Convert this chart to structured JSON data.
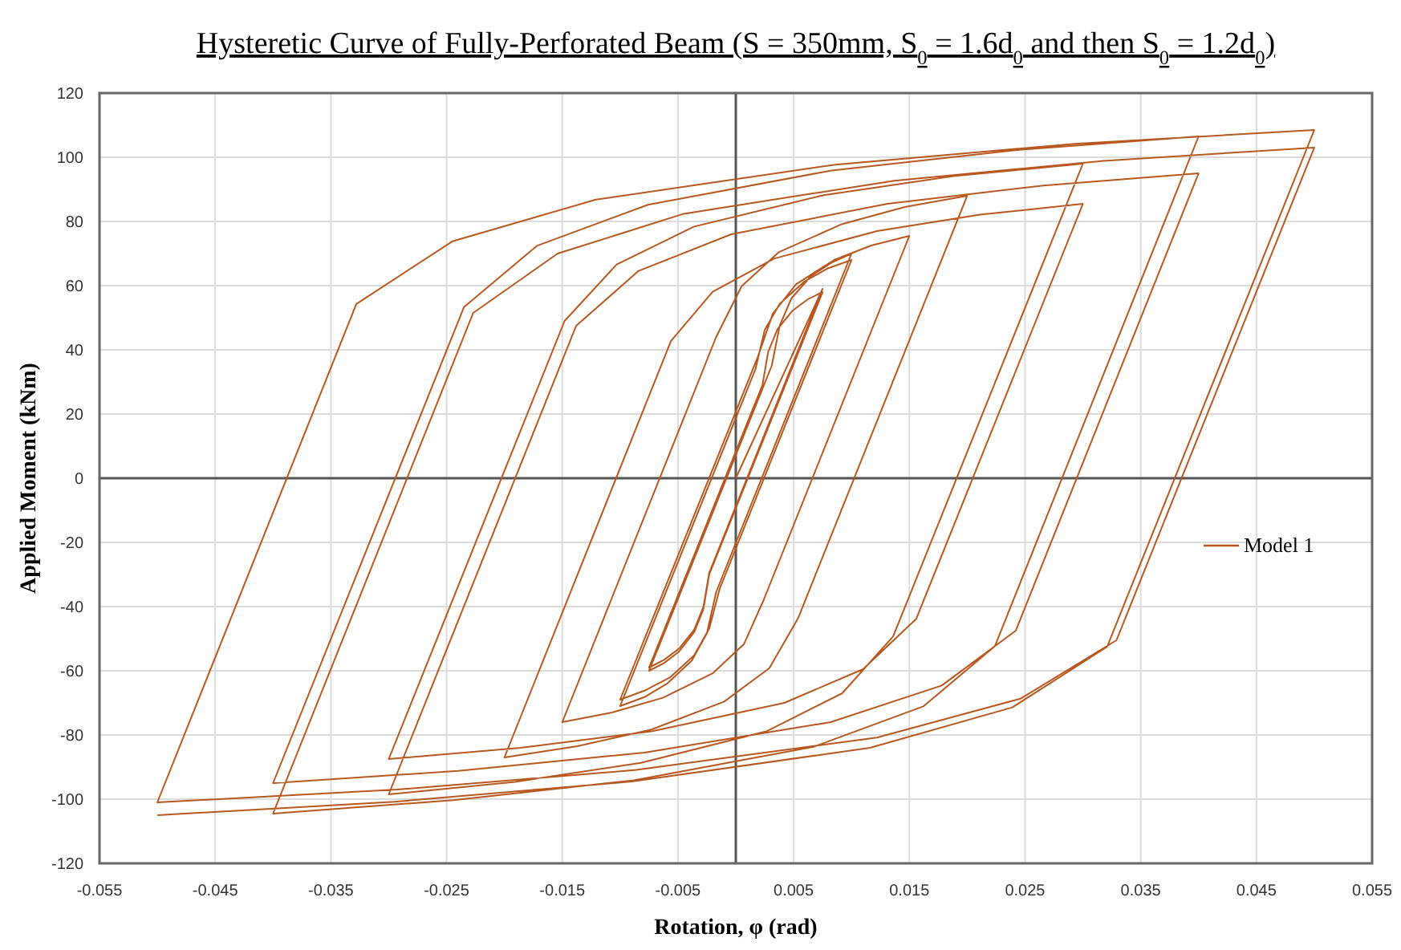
{
  "chart_data": {
    "type": "line",
    "title": "Hysteretic Curve of Fully-Perforated Beam (S = 350mm, S$_{0}$ = 1.6d$_{0}$ and then S$_{0}$ = 1.2d$_{0}$)",
    "xlabel": "Rotation, φ (rad)",
    "ylabel": "Applied Moment (kNm)",
    "xlim": [
      -0.055,
      0.055
    ],
    "xticks": [
      -0.055,
      -0.045,
      -0.035,
      -0.025,
      -0.015,
      -0.005,
      0.005,
      0.015,
      0.025,
      0.035,
      0.045,
      0.055
    ],
    "ylim": [
      -120,
      120
    ],
    "yticks": [
      -120,
      -100,
      -80,
      -60,
      -40,
      -20,
      0,
      20,
      40,
      60,
      80,
      100,
      120
    ],
    "grid": true,
    "legend": "right",
    "marker": "none",
    "line_style": "solid",
    "series": [
      {
        "name": "Model 1",
        "color": "#b8581f",
        "x": [
          0,
          0.0075,
          -0.0023,
          -0.0028,
          -0.0036,
          -0.0049,
          -0.0062,
          -0.0075,
          0.0023,
          0.0028,
          0.0036,
          0.0049,
          0.0062,
          0.0075,
          -0.0023,
          -0.0028,
          -0.0036,
          -0.0049,
          -0.0062,
          -0.0075,
          0.0031,
          0.0038,
          0.0048,
          0.0065,
          0.0083,
          0.01,
          -0.0017,
          -0.0025,
          -0.0038,
          -0.0059,
          -0.0079,
          -0.01,
          0.0017,
          0.0025,
          0.0038,
          0.0059,
          0.0079,
          0.01,
          -0.0014,
          -0.0023,
          -0.0036,
          -0.0057,
          -0.0079,
          -0.01,
          0.0019,
          0.0032,
          0.0052,
          0.0085,
          0.0117,
          0.015,
          0.0024,
          0.0007,
          -0.002,
          -0.0063,
          -0.0107,
          -0.015,
          -0.0017,
          0.0005,
          0.0037,
          0.0092,
          0.0146,
          0.02,
          0.0054,
          0.0029,
          -0.001,
          -0.0073,
          -0.0137,
          -0.02,
          -0.0056,
          -0.002,
          0.0033,
          0.0122,
          0.0211,
          0.03,
          0.0156,
          0.011,
          0.0042,
          -0.0072,
          -0.0186,
          -0.03,
          -0.0148,
          -0.0103,
          -0.0036,
          0.0076,
          0.0188,
          0.03,
          0.0136,
          0.0092,
          0.0027,
          -0.0082,
          -0.0191,
          -0.03,
          -0.0138,
          -0.0084,
          -0.0004,
          0.0131,
          0.0266,
          0.04,
          0.0242,
          0.0178,
          0.0082,
          -0.0079,
          -0.024,
          -0.04,
          -0.0235,
          -0.0172,
          -0.0076,
          0.0083,
          0.0241,
          0.04,
          0.0224,
          0.0162,
          0.0068,
          -0.0088,
          -0.0244,
          -0.04,
          -0.0227,
          -0.0154,
          -0.0045,
          0.0137,
          0.0318,
          0.05,
          0.0329,
          0.0246,
          0.0122,
          -0.0086,
          -0.0293,
          -0.05,
          -0.0328,
          -0.0245,
          -0.0121,
          0.0086,
          0.0293,
          0.05,
          0.0321,
          0.0239,
          0.0116,
          -0.009,
          -0.0295,
          -0.05
        ],
        "values": [
          0,
          59,
          -29.5,
          -40.1,
          -47.2,
          -53.1,
          -56.6,
          -59,
          29,
          39.4,
          46.4,
          52.2,
          55.7,
          58,
          -30,
          -40.8,
          -48,
          -54,
          -57.6,
          -60,
          35,
          47.6,
          56,
          63,
          67.2,
          70,
          -35.5,
          -48.3,
          -56.8,
          -63.9,
          -68.2,
          -71,
          34,
          46.2,
          54.4,
          61.2,
          65.3,
          68,
          -34.5,
          -46.9,
          -55.2,
          -62.1,
          -66.2,
          -69,
          37.8,
          51.3,
          60.4,
          68,
          72.5,
          75.5,
          -38,
          -51.7,
          -60.8,
          -68.4,
          -73,
          -76,
          44,
          59.8,
          70.4,
          79.2,
          84.5,
          88,
          -43.5,
          -59.2,
          -69.6,
          -78.3,
          -83.5,
          -87,
          42.8,
          58.1,
          68.4,
          77,
          82.1,
          85.5,
          -43.8,
          -59.5,
          -70,
          -78.8,
          -84,
          -87.5,
          49,
          66.6,
          78.4,
          88.2,
          94.1,
          98,
          -49.3,
          -67,
          -78.8,
          -88.7,
          -94.6,
          -98.5,
          47.5,
          64.6,
          76,
          85.5,
          91.2,
          95,
          -47.5,
          -64.6,
          -76,
          -85.5,
          -91.2,
          -95,
          53.3,
          72.4,
          85.2,
          95.9,
          102.2,
          106.5,
          -52.3,
          -71.1,
          -83.6,
          -94.1,
          -100.3,
          -104.5,
          51.5,
          70,
          82.4,
          92.7,
          98.9,
          103,
          -50.5,
          -68.7,
          -80.8,
          -90.9,
          -97,
          -101,
          54.3,
          73.8,
          86.8,
          97.7,
          104.2,
          108.5,
          -52.5,
          -71.4,
          -84,
          -94.5,
          -100.8,
          -105
        ]
      }
    ]
  }
}
